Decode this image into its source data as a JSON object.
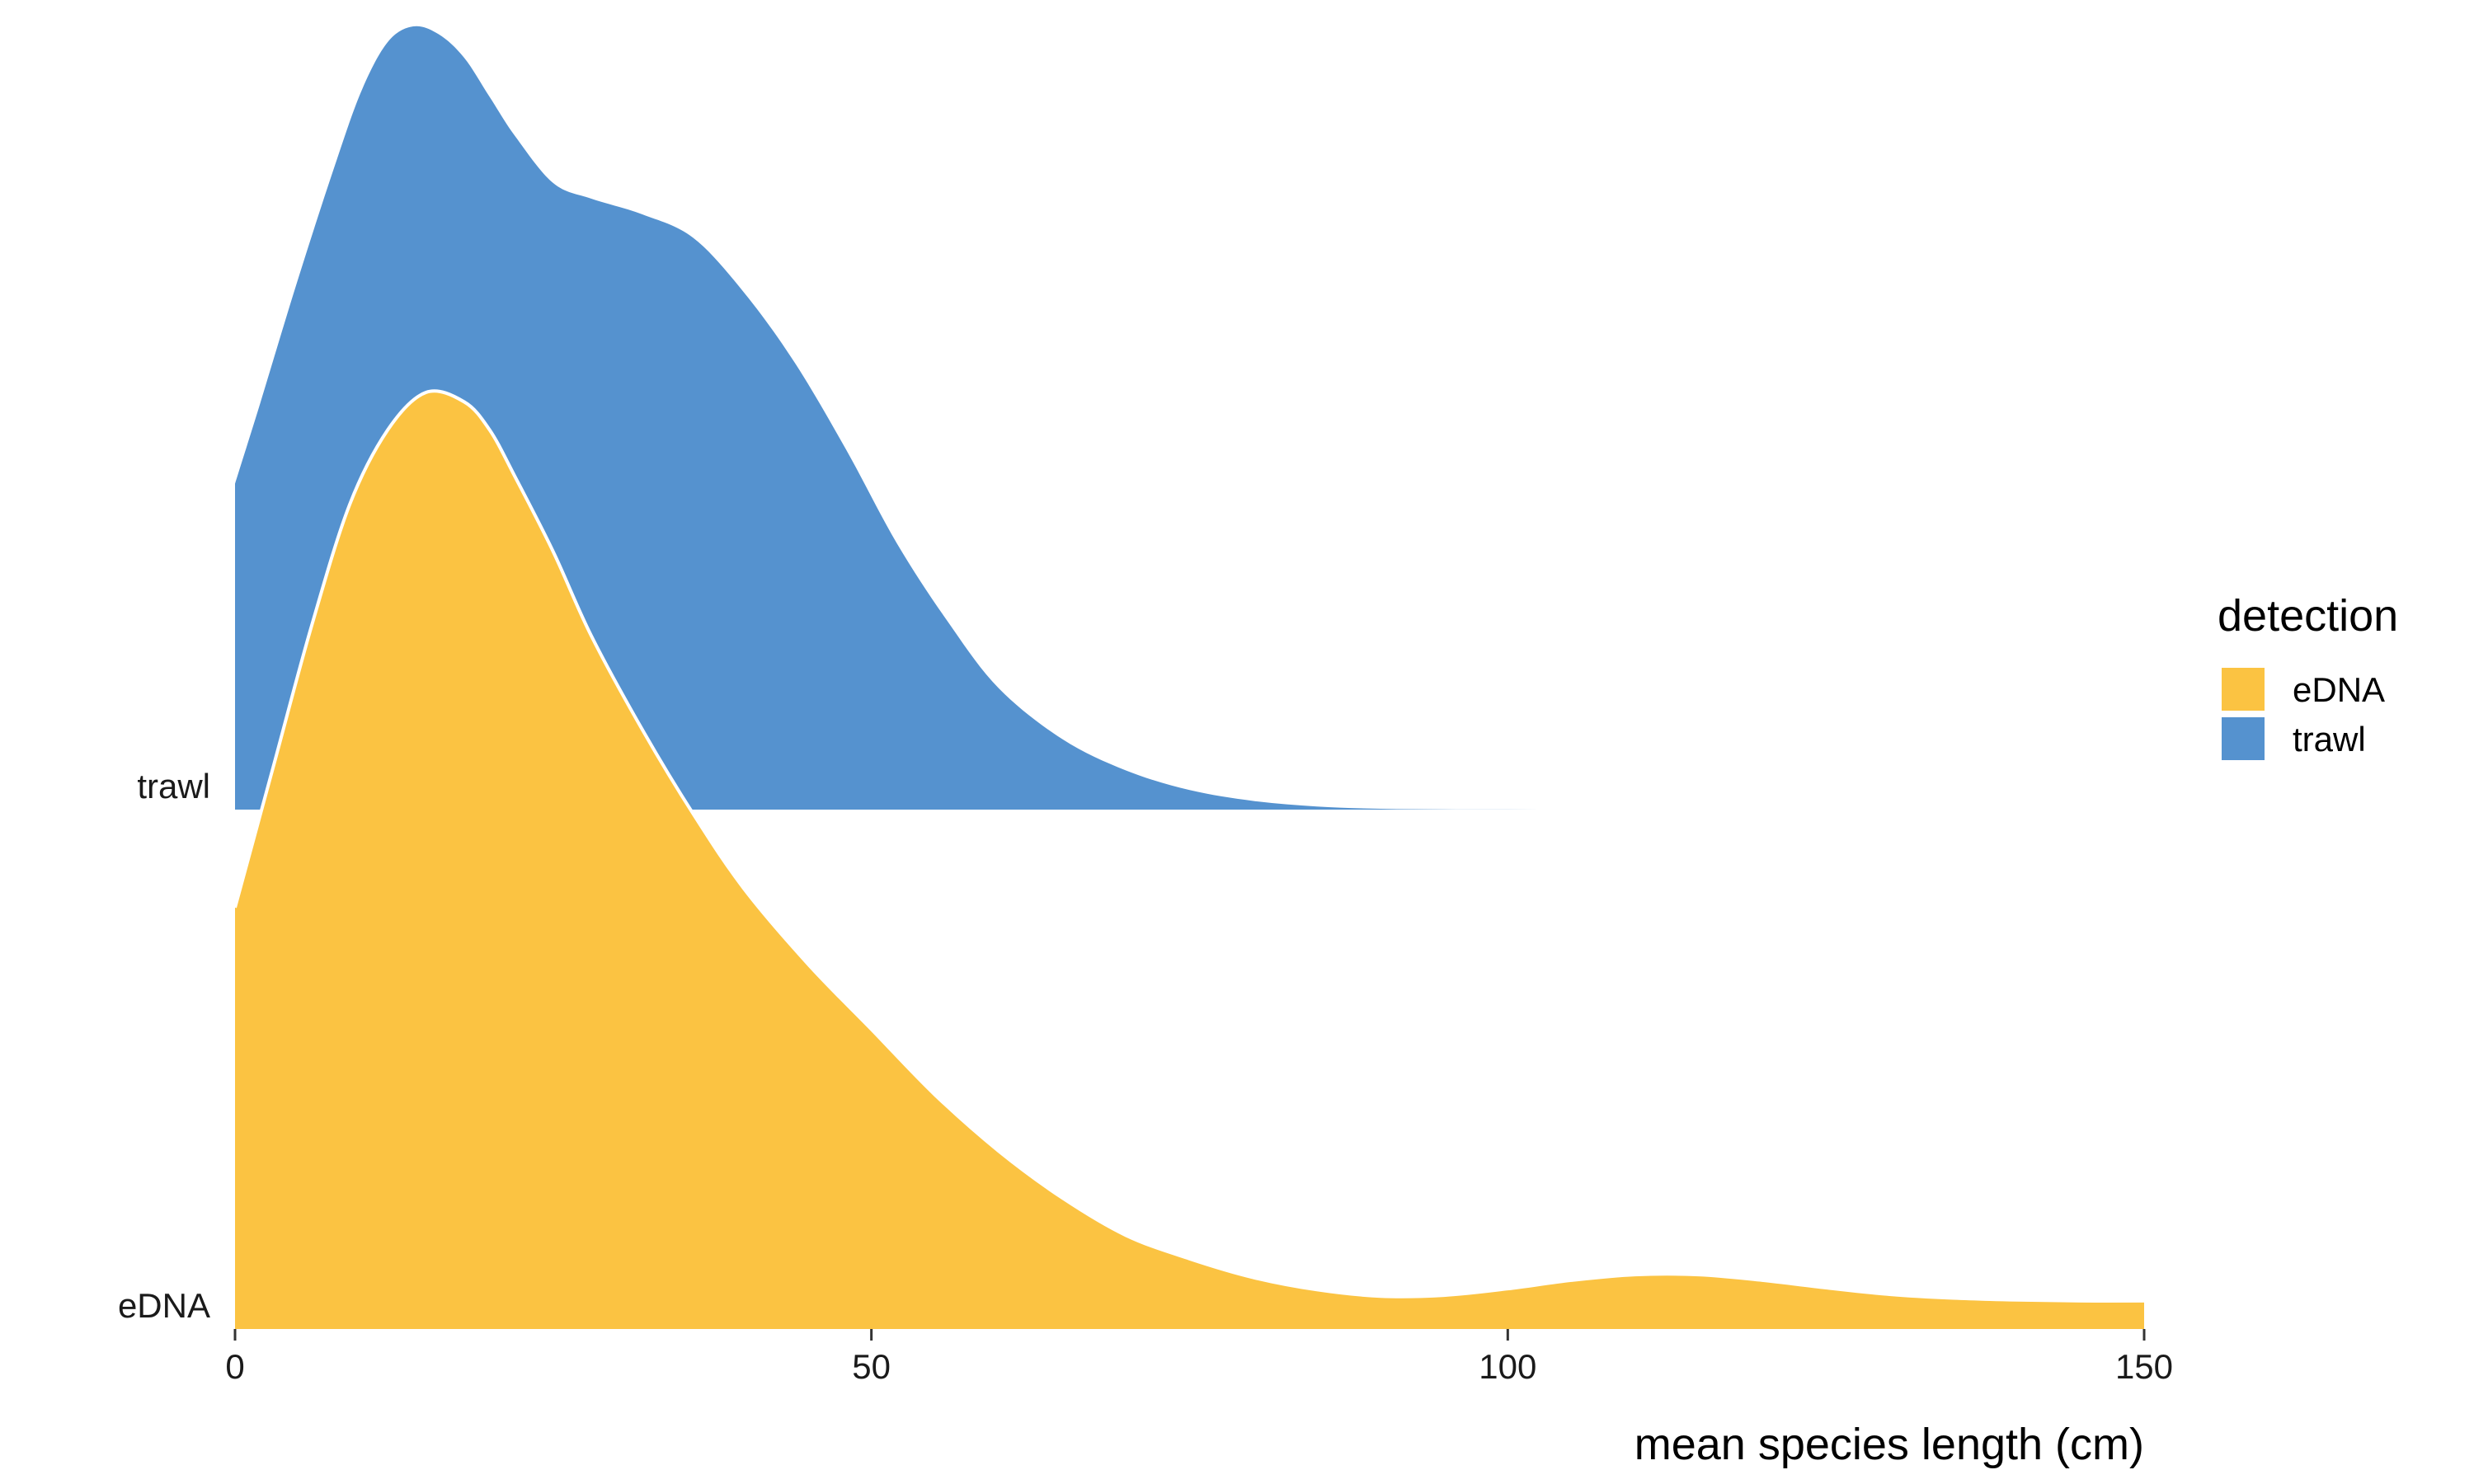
{
  "chart_data": {
    "type": "area",
    "subtype": "ridgeline-density",
    "title": "",
    "xlabel": "mean species length (cm)",
    "ylabel": "",
    "xlim": [
      0,
      150
    ],
    "x_ticks": [
      0,
      50,
      100,
      150
    ],
    "x_tick_labels": [
      "0",
      "50",
      "100",
      "150"
    ],
    "y_categories": [
      "eDNA",
      "trawl"
    ],
    "grid": false,
    "legend": {
      "title": "detection",
      "position": "right",
      "entries": [
        {
          "label": "eDNA",
          "color": "#FBC342"
        },
        {
          "label": "trawl",
          "color": "#5592CF"
        }
      ]
    },
    "series": [
      {
        "name": "trawl",
        "color": "#5592CF",
        "x": [
          0,
          2,
          5,
          8,
          10,
          12,
          14,
          16,
          18,
          20,
          22,
          25,
          28,
          32,
          36,
          40,
          44,
          48,
          52,
          56,
          60,
          65,
          70,
          75,
          80,
          85,
          90,
          95,
          100,
          105,
          110
        ],
        "density": [
          0.416,
          0.52,
          0.68,
          0.83,
          0.92,
          0.98,
          1.0,
          0.99,
          0.96,
          0.91,
          0.86,
          0.8,
          0.78,
          0.76,
          0.73,
          0.66,
          0.57,
          0.46,
          0.34,
          0.24,
          0.155,
          0.09,
          0.05,
          0.025,
          0.011,
          0.004,
          0.001,
          0.0003,
          0.0001,
          0.0,
          0.0
        ]
      },
      {
        "name": "eDNA",
        "color": "#FBC342",
        "x": [
          0,
          3,
          6,
          9,
          12,
          15,
          18,
          20,
          22,
          25,
          28,
          32,
          36,
          40,
          45,
          50,
          55,
          60,
          65,
          70,
          75,
          80,
          85,
          90,
          95,
          100,
          105,
          110,
          115,
          120,
          125,
          130,
          135,
          140,
          145,
          150
        ],
        "density": [
          0.45,
          0.6,
          0.75,
          0.88,
          0.96,
          1.0,
          0.99,
          0.96,
          0.91,
          0.83,
          0.74,
          0.64,
          0.55,
          0.47,
          0.39,
          0.32,
          0.25,
          0.19,
          0.14,
          0.1,
          0.075,
          0.055,
          0.042,
          0.035,
          0.036,
          0.043,
          0.052,
          0.058,
          0.058,
          0.052,
          0.044,
          0.037,
          0.033,
          0.031,
          0.03,
          0.03
        ]
      }
    ]
  }
}
